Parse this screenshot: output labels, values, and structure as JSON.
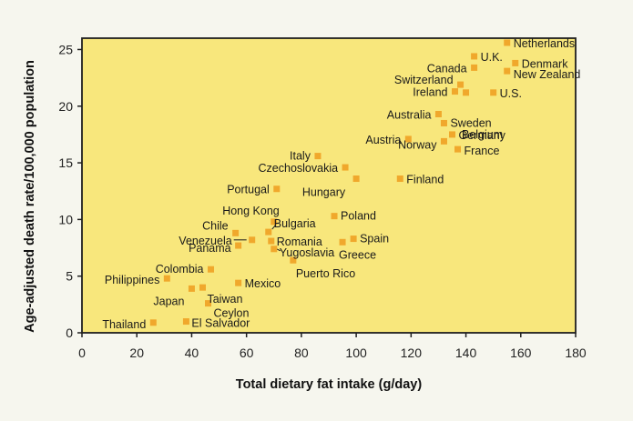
{
  "chart_data": {
    "type": "scatter",
    "title": "",
    "xlabel": "Total dietary fat intake (g/day)",
    "ylabel": "Age-adjusted death rate/100,000 population",
    "xlim": [
      0,
      180
    ],
    "ylim": [
      0,
      26
    ],
    "xticks": [
      0,
      20,
      40,
      60,
      80,
      100,
      120,
      140,
      160,
      180
    ],
    "yticks": [
      0,
      5,
      10,
      15,
      20,
      25
    ],
    "grid": false,
    "colors": {
      "plot_bg": "#f8e77c",
      "marker": "#f0a82c",
      "frame": "#1f1f1f",
      "page_bg": "#f6f6ee"
    },
    "points": [
      {
        "label": "Netherlands",
        "x": 155,
        "y": 25.6
      },
      {
        "label": "U.K.",
        "x": 143,
        "y": 24.4
      },
      {
        "label": "Canada",
        "x": 143,
        "y": 23.4
      },
      {
        "label": "Denmark",
        "x": 158,
        "y": 23.8
      },
      {
        "label": "New Zealand",
        "x": 155,
        "y": 23.1
      },
      {
        "label": "Switzerland",
        "x": 138,
        "y": 21.9
      },
      {
        "label": "Ireland",
        "x": 136,
        "y": 21.3
      },
      {
        "label": "Ireland",
        "x": 140,
        "y": 21.2
      },
      {
        "label": "U.S.",
        "x": 150,
        "y": 21.2
      },
      {
        "label": "Belgium",
        "x": null,
        "y": null
      },
      {
        "label": "Australia",
        "x": 130,
        "y": 19.3
      },
      {
        "label": "Sweden",
        "x": 132,
        "y": 18.5
      },
      {
        "label": "Germany",
        "x": 135,
        "y": 17.5
      },
      {
        "label": "Austria",
        "x": 119,
        "y": 17.1
      },
      {
        "label": "Norway",
        "x": 132,
        "y": 16.9
      },
      {
        "label": "France",
        "x": 137,
        "y": 16.2
      },
      {
        "label": "Italy",
        "x": 86,
        "y": 15.6
      },
      {
        "label": "Czechoslovakia",
        "x": 96,
        "y": 14.6
      },
      {
        "label": "Hungary",
        "x": 100,
        "y": 13.6
      },
      {
        "label": "Finland",
        "x": 116,
        "y": 13.6
      },
      {
        "label": "Portugal",
        "x": 71,
        "y": 12.7
      },
      {
        "label": "Poland",
        "x": 92,
        "y": 10.3
      },
      {
        "label": "Hong Kong",
        "x": 70,
        "y": 9.8
      },
      {
        "label": "Chile",
        "x": 56,
        "y": 8.8
      },
      {
        "label": "Bulgaria",
        "x": 68,
        "y": 8.9
      },
      {
        "label": "Venezuela",
        "x": 62,
        "y": 8.2
      },
      {
        "label": "Romania",
        "x": 69,
        "y": 8.1
      },
      {
        "label": "Spain",
        "x": 99,
        "y": 8.3
      },
      {
        "label": "Panama",
        "x": 57,
        "y": 7.7
      },
      {
        "label": "Greece",
        "x": 95,
        "y": 8.0
      },
      {
        "label": "Yugoslavia",
        "x": 70,
        "y": 7.4
      },
      {
        "label": "Puerto Rico",
        "x": 77,
        "y": 6.4
      },
      {
        "label": "Colombia",
        "x": 47,
        "y": 5.6
      },
      {
        "label": "Philippines",
        "x": 31,
        "y": 4.8
      },
      {
        "label": "Mexico",
        "x": 57,
        "y": 4.4
      },
      {
        "label": "Japan",
        "x": 40,
        "y": 3.9
      },
      {
        "label": "Taiwan",
        "x": 44,
        "y": 4.0
      },
      {
        "label": "Ceylon",
        "x": 46,
        "y": 2.6
      },
      {
        "label": "Thailand",
        "x": 26,
        "y": 0.9
      },
      {
        "label": "El Salvador",
        "x": 38,
        "y": 1.0
      }
    ]
  }
}
